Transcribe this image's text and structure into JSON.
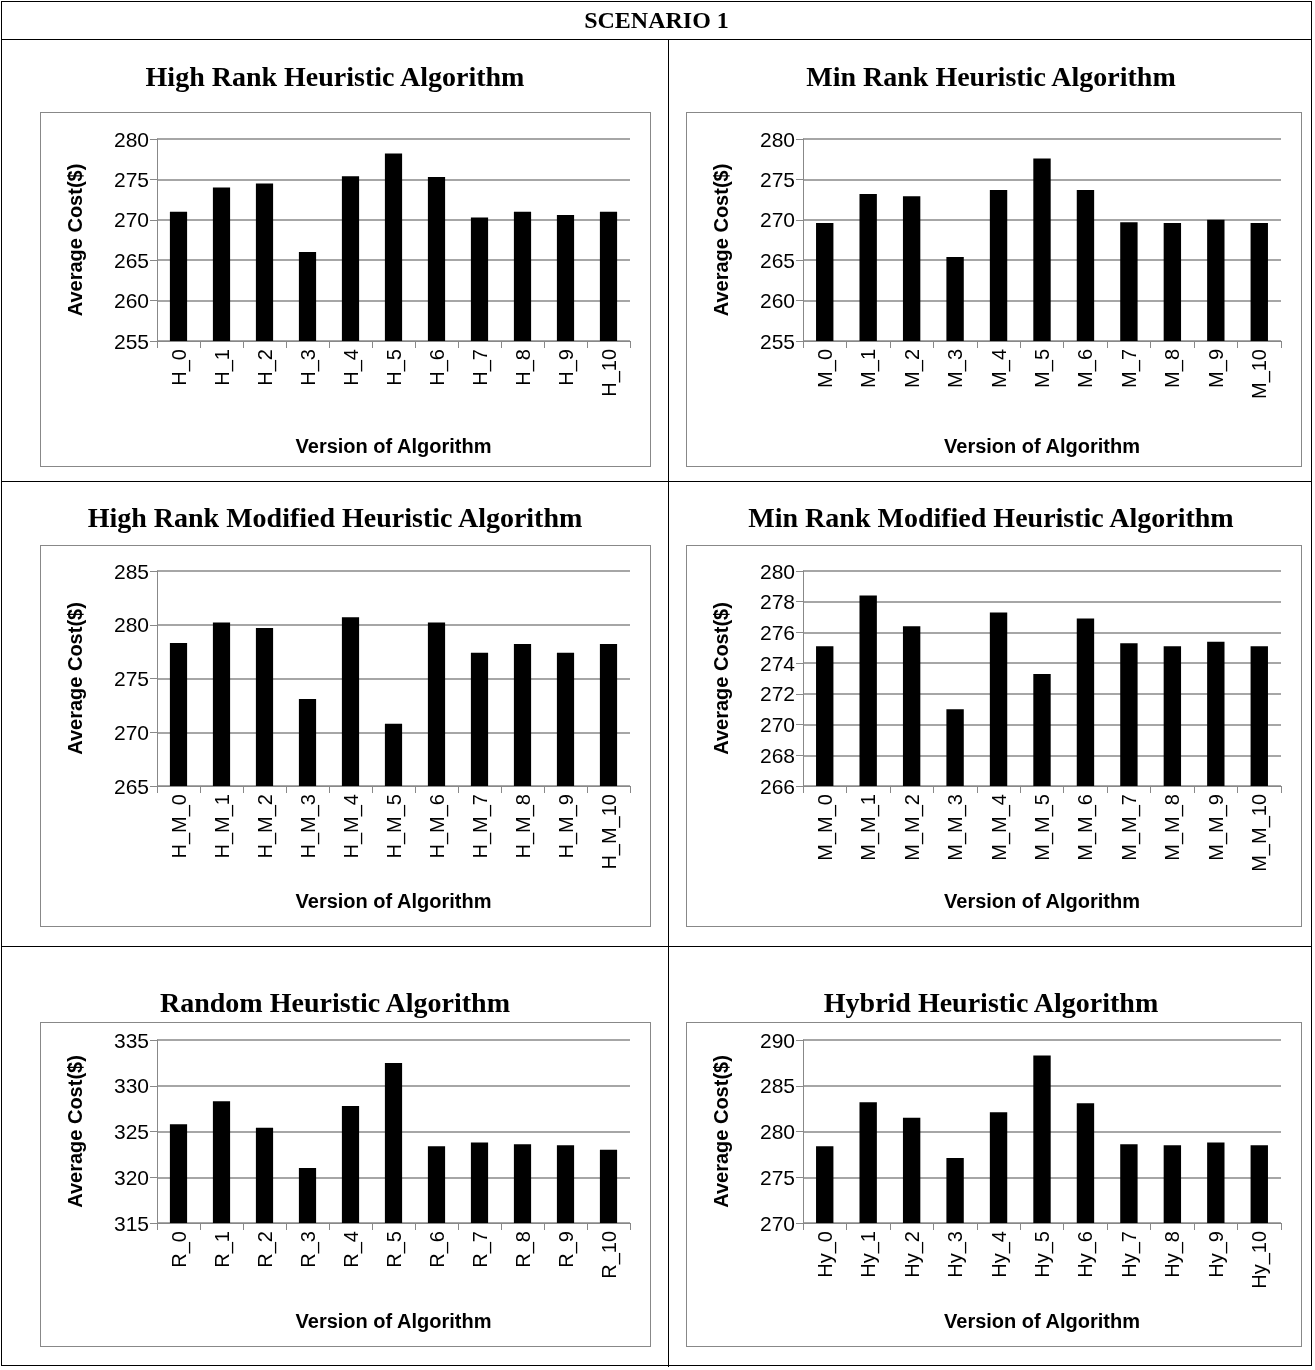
{
  "chart_data": [
    {
      "type": "bar",
      "annotations": [
        "SCENARIO 1"
      ],
      "title": "High Rank Heuristic Algorithm",
      "xlabel": "Version of Algorithm",
      "ylabel": "Average Cost($)",
      "categories": [
        "H_0",
        "H_1",
        "H_2",
        "H_3",
        "H_4",
        "H_5",
        "H_6",
        "H_7",
        "H_8",
        "H_9",
        "H_10"
      ],
      "values": [
        271,
        274,
        274.5,
        266,
        275.4,
        278.2,
        275.3,
        270.3,
        271,
        270.6,
        271
      ],
      "color": "#000000",
      "ylim": [
        255,
        280
      ],
      "yticks": [
        255,
        260,
        265,
        270,
        275,
        280
      ],
      "grid": "y"
    },
    {
      "type": "bar",
      "title": "Min Rank Heuristic Algorithm",
      "xlabel": "Version of Algorithm",
      "ylabel": "Average Cost($)",
      "categories": [
        "M_0",
        "M_1",
        "M_2",
        "M_3",
        "M_4",
        "M_5",
        "M_6",
        "M_7",
        "M_8",
        "M_9",
        "M_10"
      ],
      "values": [
        269.6,
        273.2,
        272.9,
        265.4,
        273.7,
        277.6,
        273.7,
        269.7,
        269.6,
        270,
        269.6
      ],
      "color": "#000000",
      "ylim": [
        255,
        280
      ],
      "yticks": [
        255,
        260,
        265,
        270,
        275,
        280
      ],
      "grid": "y"
    },
    {
      "type": "bar",
      "title": "High Rank Modified Heuristic Algorithm",
      "xlabel": "Version of Algorithm",
      "ylabel": "Average Cost($)",
      "categories": [
        "H_M_0",
        "H_M_1",
        "H_M_2",
        "H_M_3",
        "H_M_4",
        "H_M_5",
        "H_M_6",
        "H_M_7",
        "H_M_8",
        "H_M_9",
        "H_M_10"
      ],
      "values": [
        278.3,
        280.2,
        279.7,
        273.1,
        280.7,
        270.8,
        280.2,
        277.4,
        278.2,
        277.4,
        278.2
      ],
      "color": "#000000",
      "ylim": [
        265,
        285
      ],
      "yticks": [
        265,
        270,
        275,
        280,
        285
      ],
      "grid": "y"
    },
    {
      "type": "bar",
      "title": "Min Rank Modified Heuristic Algorithm",
      "xlabel": "Version of Algorithm",
      "ylabel": "Average Cost($)",
      "categories": [
        "M_M_0",
        "M_M_1",
        "M_M_2",
        "M_M_3",
        "M_M_4",
        "M_M_5",
        "M_M_6",
        "M_M_7",
        "M_M_8",
        "M_M_9",
        "M_M_10"
      ],
      "values": [
        275.1,
        278.4,
        276.4,
        271,
        277.3,
        273.3,
        276.9,
        275.3,
        275.1,
        275.4,
        275.1
      ],
      "color": "#000000",
      "ylim": [
        266,
        280
      ],
      "yticks": [
        266,
        268,
        270,
        272,
        274,
        276,
        278,
        280
      ],
      "grid": "y"
    },
    {
      "type": "bar",
      "title": "Random Heuristic Algorithm",
      "xlabel": "Version of Algorithm",
      "ylabel": "Average Cost($)",
      "categories": [
        "R_0",
        "R_1",
        "R_2",
        "R_3",
        "R_4",
        "R_5",
        "R_6",
        "R_7",
        "R_8",
        "R_9",
        "R_10"
      ],
      "values": [
        325.8,
        328.3,
        325.4,
        321,
        327.8,
        332.5,
        323.4,
        323.8,
        323.6,
        323.5,
        323
      ],
      "color": "#000000",
      "ylim": [
        315,
        335
      ],
      "yticks": [
        315,
        320,
        325,
        330,
        335
      ],
      "grid": "y"
    },
    {
      "type": "bar",
      "title": "Hybrid Heuristic Algorithm",
      "xlabel": "Version of Algorithm",
      "ylabel": "Average Cost($)",
      "categories": [
        "Hy_0",
        "Hy_1",
        "Hy_2",
        "Hy_3",
        "Hy_4",
        "Hy_5",
        "Hy_6",
        "Hy_7",
        "Hy_8",
        "Hy_9",
        "Hy_10"
      ],
      "values": [
        278.4,
        283.2,
        281.5,
        277.1,
        282.1,
        288.3,
        283.1,
        278.6,
        278.5,
        278.8,
        278.5
      ],
      "color": "#000000",
      "ylim": [
        270,
        290
      ],
      "yticks": [
        270,
        275,
        280,
        285,
        290
      ],
      "grid": "y"
    }
  ]
}
